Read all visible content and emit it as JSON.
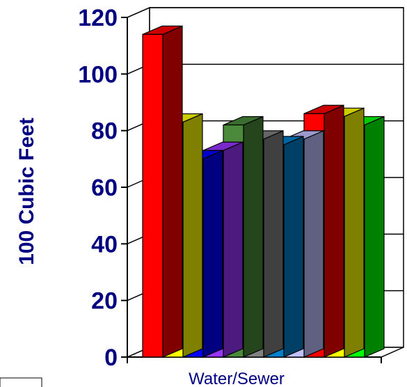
{
  "chart_data": {
    "type": "bar",
    "style": "3d-clustered-column",
    "categories": [
      "Water/Sewer"
    ],
    "series": [
      {
        "values": [
          114
        ],
        "color": "#ff0000",
        "side_color": "#800000",
        "top_color": "#cc0000"
      },
      {
        "values": [
          83
        ],
        "color": "#ffff00",
        "side_color": "#808000",
        "top_color": "#cccc00"
      },
      {
        "values": [
          70
        ],
        "color": "#0000ff",
        "side_color": "#000080",
        "top_color": "#0000cc"
      },
      {
        "values": [
          73
        ],
        "color": "#9933ff",
        "side_color": "#4d1a80",
        "top_color": "#7a29cc"
      },
      {
        "values": [
          82
        ],
        "color": "#4a8a3a",
        "side_color": "#25451d",
        "top_color": "#3b6e2e"
      },
      {
        "values": [
          77
        ],
        "color": "#808080",
        "side_color": "#404040",
        "top_color": "#666666"
      },
      {
        "values": [
          75
        ],
        "color": "#0080cc",
        "side_color": "#004066",
        "top_color": "#0066a3"
      },
      {
        "values": [
          77
        ],
        "color": "#c0c0ff",
        "side_color": "#606080",
        "top_color": "#9a9acc"
      },
      {
        "values": [
          86
        ],
        "color": "#ff0000",
        "side_color": "#800000",
        "top_color": "#cc0000"
      },
      {
        "values": [
          85
        ],
        "color": "#ffff00",
        "side_color": "#808000",
        "top_color": "#cccc00"
      },
      {
        "values": [
          82
        ],
        "color": "#00ff00",
        "side_color": "#008000",
        "top_color": "#00cc00"
      }
    ],
    "title": "",
    "xlabel": "",
    "ylabel": "100 Cubic Feet",
    "ylim": [
      0,
      120
    ],
    "yticks": [
      "0",
      "20",
      "40",
      "60",
      "80",
      "100",
      "120"
    ],
    "grid": true,
    "legend": "none",
    "colors": {
      "axis_text": "#000080",
      "grid": "#000000"
    }
  }
}
